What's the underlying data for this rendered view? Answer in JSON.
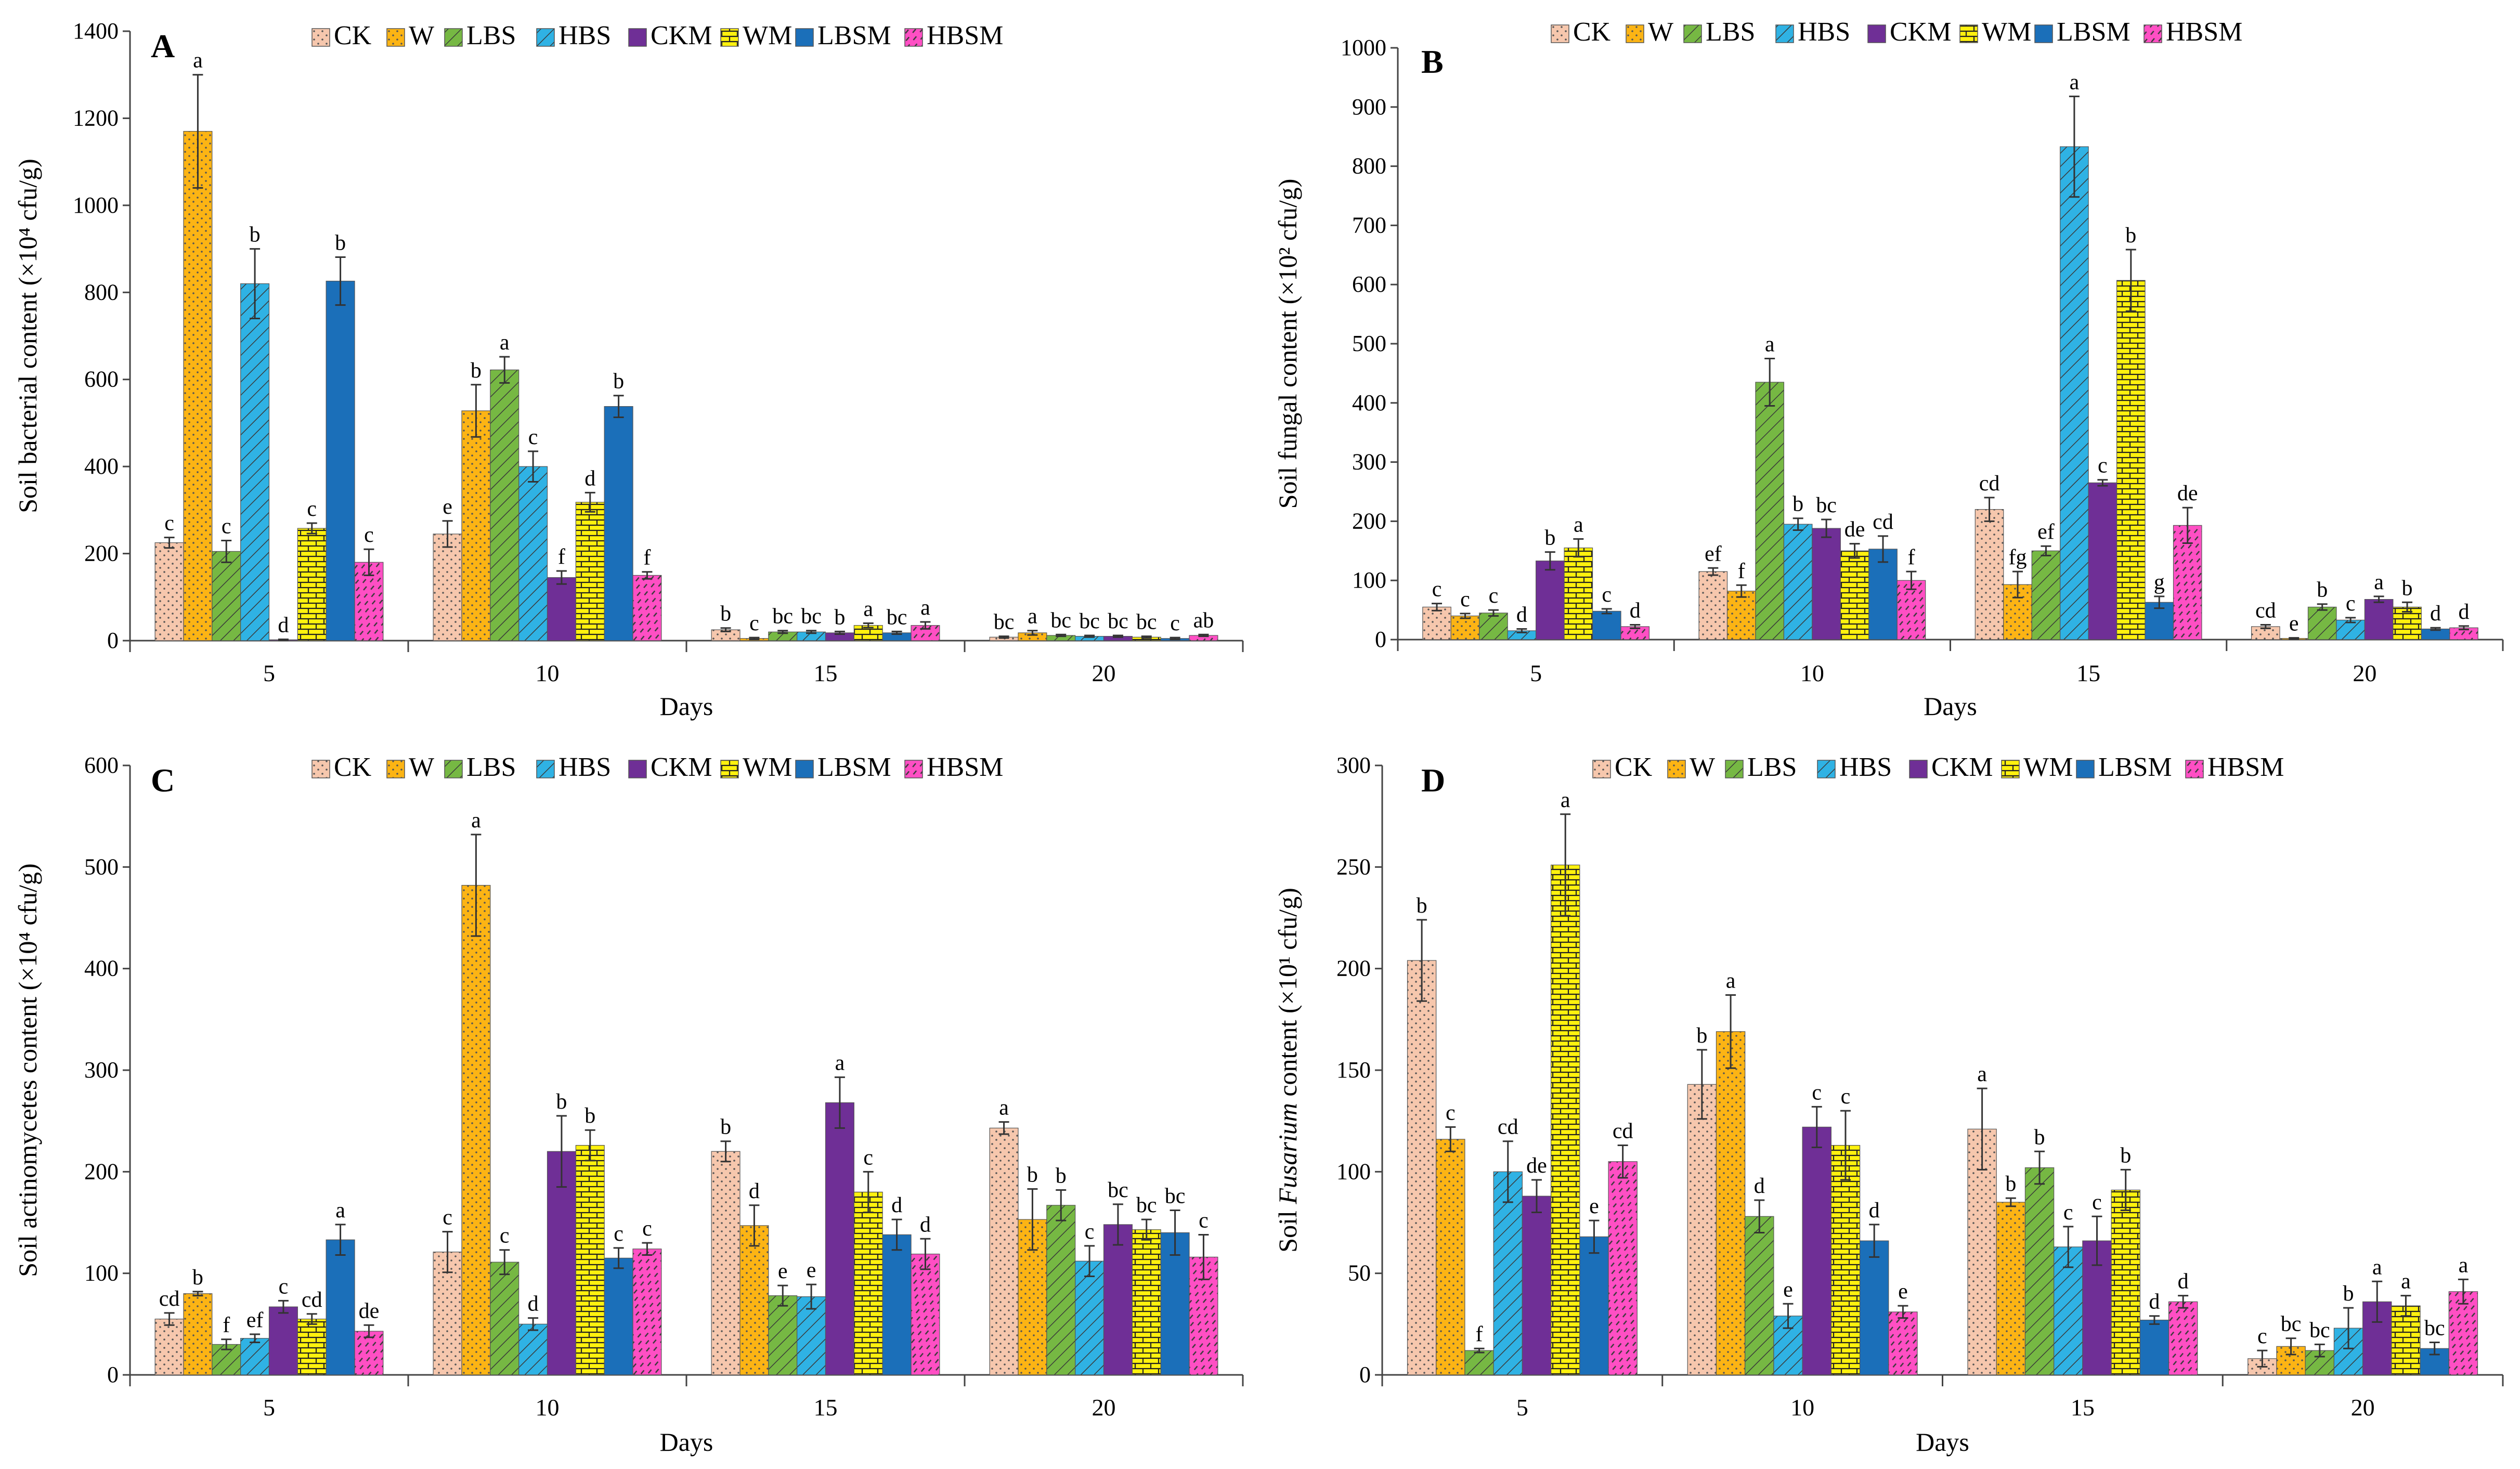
{
  "figure": {
    "series_names": [
      "CK",
      "W",
      "LBS",
      "HBS",
      "CKM",
      "WM",
      "LBSM",
      "HBSM"
    ],
    "series_colors": [
      "#f6c7ad",
      "#fcb414",
      "#76b843",
      "#2fb2e4",
      "#6f2f96",
      "#fff10e",
      "#1b6fb9",
      "#ff4fc4"
    ],
    "series_patterns": [
      "dots",
      "dots",
      "diag",
      "diag",
      "plain",
      "brick",
      "plain",
      "dash"
    ]
  },
  "chart_data": [
    {
      "type": "bar",
      "panel": "A",
      "ylabel": "Soil bacterial content (×10⁴ cfu/g)",
      "xlabel": "Days",
      "categories": [
        "5",
        "10",
        "15",
        "20"
      ],
      "ylim": [
        0,
        1400
      ],
      "yticks": [
        "0",
        "200",
        "400",
        "600",
        "800",
        "1000",
        "1200",
        "1400"
      ],
      "series": [
        {
          "name": "CK",
          "values": [
            225,
            245,
            25,
            8
          ],
          "errors": [
            12,
            30,
            4,
            2
          ],
          "labels": [
            "c",
            "e",
            "b",
            "bc"
          ]
        },
        {
          "name": "W",
          "values": [
            1170,
            528,
            5,
            18
          ],
          "errors": [
            130,
            60,
            2,
            5
          ],
          "labels": [
            "a",
            "b",
            "c",
            "a"
          ]
        },
        {
          "name": "LBS",
          "values": [
            205,
            622,
            20,
            12
          ],
          "errors": [
            25,
            30,
            3,
            2
          ],
          "labels": [
            "c",
            "a",
            "bc",
            "bc"
          ]
        },
        {
          "name": "HBS",
          "values": [
            820,
            400,
            20,
            10
          ],
          "errors": [
            80,
            35,
            3,
            2
          ],
          "labels": [
            "b",
            "c",
            "bc",
            "bc"
          ]
        },
        {
          "name": "CKM",
          "values": [
            2,
            145,
            18,
            10
          ],
          "errors": [
            1,
            15,
            3,
            2
          ],
          "labels": [
            "d",
            "f",
            "b",
            "bc"
          ]
        },
        {
          "name": "WM",
          "values": [
            258,
            318,
            35,
            8
          ],
          "errors": [
            12,
            22,
            5,
            2
          ],
          "labels": [
            "c",
            "d",
            "a",
            "bc"
          ]
        },
        {
          "name": "LBSM",
          "values": [
            826,
            538,
            18,
            5
          ],
          "errors": [
            55,
            25,
            3,
            2
          ],
          "labels": [
            "b",
            "b",
            "bc",
            "c"
          ]
        },
        {
          "name": "HBSM",
          "values": [
            180,
            150,
            35,
            12
          ],
          "errors": [
            30,
            8,
            8,
            2
          ],
          "labels": [
            "c",
            "f",
            "a",
            "ab"
          ]
        }
      ]
    },
    {
      "type": "bar",
      "panel": "B",
      "ylabel": "Soil fungal content (×10² cfu/g)",
      "xlabel": "Days",
      "categories": [
        "5",
        "10",
        "15",
        "20"
      ],
      "ylim": [
        0,
        1000
      ],
      "yticks": [
        "0",
        "100",
        "200",
        "300",
        "400",
        "500",
        "600",
        "700",
        "800",
        "900",
        "1000"
      ],
      "series": [
        {
          "name": "CK",
          "values": [
            55,
            115,
            220,
            22
          ],
          "errors": [
            6,
            6,
            20,
            3
          ],
          "labels": [
            "c",
            "ef",
            "cd",
            "cd"
          ]
        },
        {
          "name": "W",
          "values": [
            40,
            82,
            93,
            2
          ],
          "errors": [
            4,
            10,
            22,
            1
          ],
          "labels": [
            "c",
            "f",
            "fg",
            "e"
          ]
        },
        {
          "name": "LBS",
          "values": [
            45,
            435,
            150,
            55
          ],
          "errors": [
            5,
            40,
            8,
            5
          ],
          "labels": [
            "c",
            "a",
            "ef",
            "b"
          ]
        },
        {
          "name": "HBS",
          "values": [
            15,
            195,
            833,
            33
          ],
          "errors": [
            3,
            10,
            85,
            4
          ],
          "labels": [
            "d",
            "b",
            "a",
            "c"
          ]
        },
        {
          "name": "CKM",
          "values": [
            133,
            188,
            265,
            68
          ],
          "errors": [
            15,
            15,
            5,
            5
          ],
          "labels": [
            "b",
            "bc",
            "c",
            "a"
          ]
        },
        {
          "name": "WM",
          "values": [
            155,
            150,
            607,
            55
          ],
          "errors": [
            15,
            12,
            52,
            8
          ],
          "labels": [
            "a",
            "de",
            "b",
            "b"
          ]
        },
        {
          "name": "LBSM",
          "values": [
            48,
            153,
            63,
            18
          ],
          "errors": [
            4,
            22,
            10,
            2
          ],
          "labels": [
            "c",
            "cd",
            "g",
            "d"
          ]
        },
        {
          "name": "HBSM",
          "values": [
            22,
            100,
            193,
            20
          ],
          "errors": [
            3,
            15,
            30,
            3
          ],
          "labels": [
            "d",
            "f",
            "de",
            "d"
          ]
        }
      ]
    },
    {
      "type": "bar",
      "panel": "C",
      "ylabel": "Soil actinomycetes content (×10⁴ cfu/g)",
      "xlabel": "Days",
      "categories": [
        "5",
        "10",
        "15",
        "20"
      ],
      "ylim": [
        0,
        600
      ],
      "yticks": [
        "0",
        "100",
        "200",
        "300",
        "400",
        "500",
        "600"
      ],
      "series": [
        {
          "name": "CK",
          "values": [
            55,
            121,
            220,
            243
          ],
          "errors": [
            6,
            20,
            10,
            6
          ],
          "labels": [
            "cd",
            "c",
            "b",
            "a"
          ]
        },
        {
          "name": "W",
          "values": [
            80,
            482,
            147,
            153
          ],
          "errors": [
            2,
            50,
            20,
            30
          ],
          "labels": [
            "b",
            "a",
            "d",
            "b"
          ]
        },
        {
          "name": "LBS",
          "values": [
            30,
            111,
            78,
            167
          ],
          "errors": [
            5,
            12,
            10,
            15
          ],
          "labels": [
            "f",
            "c",
            "e",
            "b"
          ]
        },
        {
          "name": "HBS",
          "values": [
            36,
            50,
            77,
            112
          ],
          "errors": [
            4,
            6,
            12,
            15
          ],
          "labels": [
            "ef",
            "d",
            "e",
            "c"
          ]
        },
        {
          "name": "CKM",
          "values": [
            67,
            220,
            268,
            148
          ],
          "errors": [
            6,
            35,
            25,
            20
          ],
          "labels": [
            "c",
            "b",
            "a",
            "bc"
          ]
        },
        {
          "name": "WM",
          "values": [
            55,
            226,
            180,
            143
          ],
          "errors": [
            5,
            15,
            20,
            10
          ],
          "labels": [
            "cd",
            "b",
            "c",
            "bc"
          ]
        },
        {
          "name": "LBSM",
          "values": [
            133,
            115,
            138,
            140
          ],
          "errors": [
            15,
            10,
            15,
            22
          ],
          "labels": [
            "a",
            "c",
            "d",
            "bc"
          ]
        },
        {
          "name": "HBSM",
          "values": [
            43,
            124,
            119,
            116
          ],
          "errors": [
            6,
            6,
            15,
            22
          ],
          "labels": [
            "de",
            "c",
            "d",
            "c"
          ]
        }
      ]
    },
    {
      "type": "bar",
      "panel": "D",
      "ylabel_pre": "Soil ",
      "ylabel_italic": "Fusarium",
      "ylabel_post": " content (×10¹ cfu/g)",
      "xlabel": "Days",
      "categories": [
        "5",
        "10",
        "15",
        "20"
      ],
      "ylim": [
        0,
        300
      ],
      "yticks": [
        "0",
        "50",
        "100",
        "150",
        "200",
        "250",
        "300"
      ],
      "series": [
        {
          "name": "CK",
          "values": [
            204,
            143,
            121,
            8
          ],
          "errors": [
            20,
            17,
            20,
            4
          ],
          "labels": [
            "b",
            "b",
            "a",
            "c"
          ]
        },
        {
          "name": "W",
          "values": [
            116,
            169,
            85,
            14
          ],
          "errors": [
            6,
            18,
            2,
            4
          ],
          "labels": [
            "c",
            "a",
            "b",
            "bc"
          ]
        },
        {
          "name": "LBS",
          "values": [
            12,
            78,
            102,
            12
          ],
          "errors": [
            1,
            8,
            8,
            3
          ],
          "labels": [
            "f",
            "d",
            "b",
            "bc"
          ]
        },
        {
          "name": "HBS",
          "values": [
            100,
            29,
            63,
            23
          ],
          "errors": [
            15,
            6,
            10,
            10
          ],
          "labels": [
            "cd",
            "e",
            "c",
            "b"
          ]
        },
        {
          "name": "CKM",
          "values": [
            88,
            122,
            66,
            36
          ],
          "errors": [
            8,
            10,
            12,
            10
          ],
          "labels": [
            "de",
            "c",
            "c",
            "a"
          ]
        },
        {
          "name": "WM",
          "values": [
            251,
            113,
            91,
            34
          ],
          "errors": [
            25,
            17,
            10,
            5
          ],
          "labels": [
            "a",
            "c",
            "b",
            "a"
          ]
        },
        {
          "name": "LBSM",
          "values": [
            68,
            66,
            27,
            13
          ],
          "errors": [
            8,
            8,
            2,
            3
          ],
          "labels": [
            "e",
            "d",
            "d",
            "bc"
          ]
        },
        {
          "name": "HBSM",
          "values": [
            105,
            31,
            36,
            41
          ],
          "errors": [
            8,
            3,
            3,
            6
          ],
          "labels": [
            "cd",
            "e",
            "d",
            "a"
          ]
        }
      ]
    }
  ]
}
